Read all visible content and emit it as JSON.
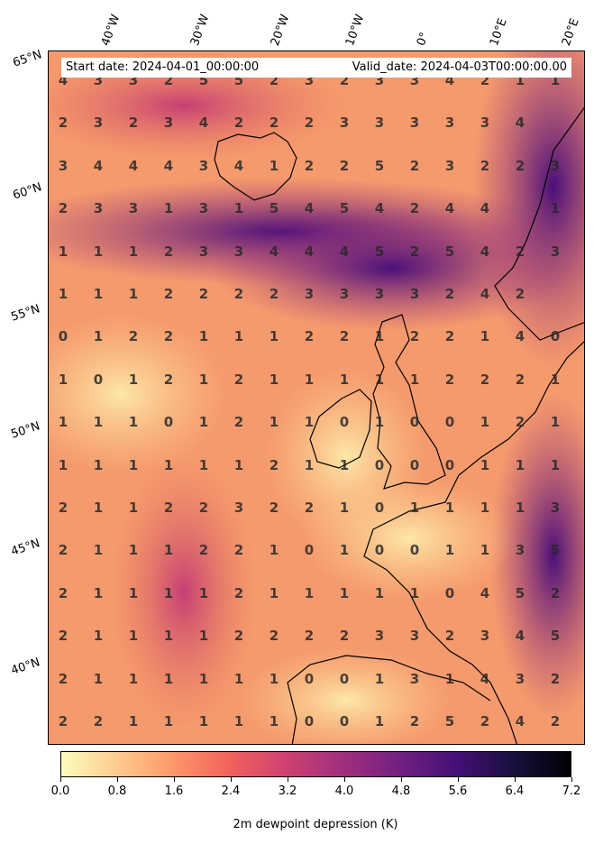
{
  "header": {
    "start_date": "Start date: 2024-04-01_00:00:00",
    "valid_date": "Valid_date: 2024-04-03T00:00:00.00"
  },
  "axes": {
    "longitude_labels": [
      "40°W",
      "30°W",
      "20°W",
      "10°W",
      "0°",
      "10°E",
      "20°E"
    ],
    "latitude_labels": [
      "65°N",
      "60°N",
      "55°N",
      "50°N",
      "45°N",
      "40°N"
    ]
  },
  "colorbar": {
    "label": "2m dewpoint depression (K)",
    "ticks": [
      "0.0",
      "0.8",
      "1.6",
      "2.4",
      "3.2",
      "4.0",
      "4.8",
      "5.6",
      "6.4",
      "7.2"
    ],
    "range": [
      0.0,
      7.2
    ],
    "colormap": "magma_r",
    "colors": [
      "#fcfdbf",
      "#feca8d",
      "#fd9668",
      "#f1605d",
      "#cd4071",
      "#9e2f7f",
      "#721f81",
      "#440f76",
      "#180f3d",
      "#000004"
    ]
  },
  "grid_values": [
    [
      "4",
      "3",
      "3",
      "2",
      "5",
      "5",
      "2",
      "3",
      "2",
      "3",
      "3",
      "4",
      "2",
      "1",
      "1"
    ],
    [
      "2",
      "3",
      "2",
      "3",
      "4",
      "2",
      "2",
      "2",
      "3",
      "3",
      "3",
      "3",
      "3",
      "4",
      ""
    ],
    [
      "3",
      "4",
      "4",
      "4",
      "3",
      "4",
      "1",
      "2",
      "2",
      "5",
      "2",
      "3",
      "2",
      "2",
      "3"
    ],
    [
      "2",
      "3",
      "3",
      "1",
      "3",
      "1",
      "5",
      "4",
      "5",
      "4",
      "2",
      "4",
      "4",
      "",
      "1"
    ],
    [
      "1",
      "1",
      "1",
      "2",
      "3",
      "3",
      "4",
      "4",
      "4",
      "5",
      "2",
      "5",
      "4",
      "2",
      "3"
    ],
    [
      "1",
      "1",
      "1",
      "2",
      "2",
      "2",
      "2",
      "3",
      "3",
      "3",
      "3",
      "2",
      "4",
      "2",
      ""
    ],
    [
      "0",
      "1",
      "2",
      "2",
      "1",
      "1",
      "1",
      "2",
      "2",
      "1",
      "2",
      "2",
      "1",
      "4",
      "0"
    ],
    [
      "1",
      "0",
      "1",
      "2",
      "1",
      "2",
      "1",
      "1",
      "1",
      "1",
      "1",
      "2",
      "2",
      "2",
      "1"
    ],
    [
      "1",
      "1",
      "1",
      "0",
      "1",
      "2",
      "1",
      "1",
      "0",
      "1",
      "0",
      "0",
      "1",
      "2",
      "1"
    ],
    [
      "1",
      "1",
      "1",
      "1",
      "1",
      "1",
      "2",
      "1",
      "1",
      "0",
      "0",
      "0",
      "1",
      "1",
      "1"
    ],
    [
      "2",
      "1",
      "1",
      "2",
      "2",
      "3",
      "2",
      "2",
      "1",
      "0",
      "1",
      "1",
      "1",
      "1",
      "3"
    ],
    [
      "2",
      "1",
      "1",
      "1",
      "2",
      "2",
      "1",
      "0",
      "1",
      "0",
      "0",
      "1",
      "1",
      "3",
      "5"
    ],
    [
      "2",
      "1",
      "1",
      "1",
      "1",
      "2",
      "1",
      "1",
      "1",
      "1",
      "1",
      "0",
      "4",
      "5",
      "2"
    ],
    [
      "2",
      "1",
      "1",
      "1",
      "1",
      "2",
      "2",
      "2",
      "2",
      "3",
      "3",
      "2",
      "3",
      "4",
      "5"
    ],
    [
      "2",
      "1",
      "1",
      "1",
      "1",
      "1",
      "1",
      "0",
      "0",
      "1",
      "3",
      "1",
      "4",
      "3",
      "2"
    ],
    [
      "2",
      "2",
      "1",
      "1",
      "1",
      "1",
      "1",
      "0",
      "0",
      "1",
      "2",
      "5",
      "2",
      "4",
      "2"
    ]
  ]
}
